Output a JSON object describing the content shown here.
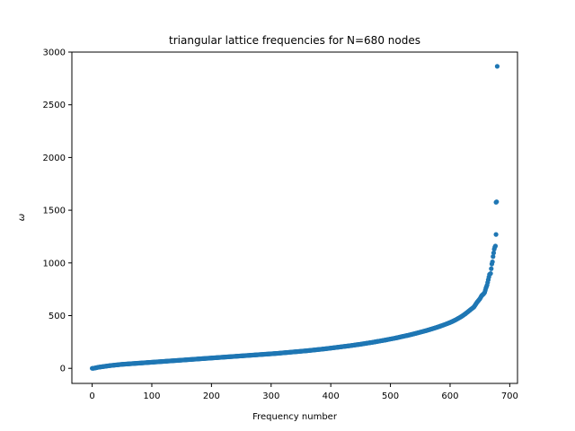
{
  "chart_data": {
    "type": "scatter",
    "title": "triangular lattice frequencies for N=680 nodes",
    "xlabel": "Frequency number",
    "ylabel": "ω",
    "xlim": [
      -34,
      713
    ],
    "ylim": [
      -143,
      3000
    ],
    "xticks": [
      0,
      100,
      200,
      300,
      400,
      500,
      600,
      700
    ],
    "yticks": [
      0,
      500,
      1000,
      1500,
      2000,
      2500,
      3000
    ],
    "marker_color": "#1f77b4",
    "grid": false,
    "legend": "none",
    "series": [
      {
        "points": [
          [
            0,
            0
          ],
          [
            1,
            0
          ],
          [
            2,
            0
          ],
          [
            10,
            10
          ],
          [
            20,
            18
          ],
          [
            30,
            26
          ],
          [
            40,
            32
          ],
          [
            50,
            38
          ],
          [
            60,
            42
          ],
          [
            70,
            46
          ],
          [
            80,
            50
          ],
          [
            90,
            54
          ],
          [
            100,
            58
          ],
          [
            110,
            62
          ],
          [
            120,
            66
          ],
          [
            130,
            70
          ],
          [
            140,
            74
          ],
          [
            150,
            78
          ],
          [
            160,
            82
          ],
          [
            170,
            86
          ],
          [
            180,
            90
          ],
          [
            190,
            94
          ],
          [
            200,
            98
          ],
          [
            210,
            102
          ],
          [
            220,
            106
          ],
          [
            230,
            110
          ],
          [
            240,
            114
          ],
          [
            250,
            118
          ],
          [
            260,
            122
          ],
          [
            270,
            126
          ],
          [
            280,
            130
          ],
          [
            290,
            134
          ],
          [
            300,
            138
          ],
          [
            310,
            142
          ],
          [
            320,
            147
          ],
          [
            330,
            152
          ],
          [
            340,
            157
          ],
          [
            350,
            162
          ],
          [
            360,
            167
          ],
          [
            370,
            173
          ],
          [
            380,
            179
          ],
          [
            390,
            185
          ],
          [
            400,
            192
          ],
          [
            410,
            199
          ],
          [
            420,
            206
          ],
          [
            430,
            213
          ],
          [
            440,
            221
          ],
          [
            450,
            229
          ],
          [
            460,
            238
          ],
          [
            470,
            247
          ],
          [
            480,
            257
          ],
          [
            490,
            267
          ],
          [
            500,
            278
          ],
          [
            510,
            289
          ],
          [
            520,
            302
          ],
          [
            530,
            314
          ],
          [
            540,
            328
          ],
          [
            550,
            343
          ],
          [
            560,
            358
          ],
          [
            570,
            375
          ],
          [
            580,
            393
          ],
          [
            590,
            413
          ],
          [
            600,
            435
          ],
          [
            605,
            448
          ],
          [
            610,
            462
          ],
          [
            615,
            478
          ],
          [
            620,
            495
          ],
          [
            625,
            515
          ],
          [
            630,
            537
          ],
          [
            635,
            560
          ],
          [
            640,
            582
          ],
          [
            645,
            625
          ],
          [
            650,
            660
          ],
          [
            653,
            690
          ],
          [
            656,
            705
          ],
          [
            658,
            720
          ],
          [
            660,
            760
          ],
          [
            662,
            790
          ],
          [
            664,
            840
          ],
          [
            666,
            890
          ],
          [
            668,
            900
          ],
          [
            670,
            990
          ],
          [
            671,
            1010
          ],
          [
            672,
            1060
          ],
          [
            674,
            1130
          ],
          [
            675,
            1150
          ],
          [
            676,
            1160
          ],
          [
            677,
            1270
          ],
          [
            677,
            1575
          ],
          [
            678,
            1580
          ],
          [
            679,
            2865
          ]
        ]
      }
    ]
  }
}
